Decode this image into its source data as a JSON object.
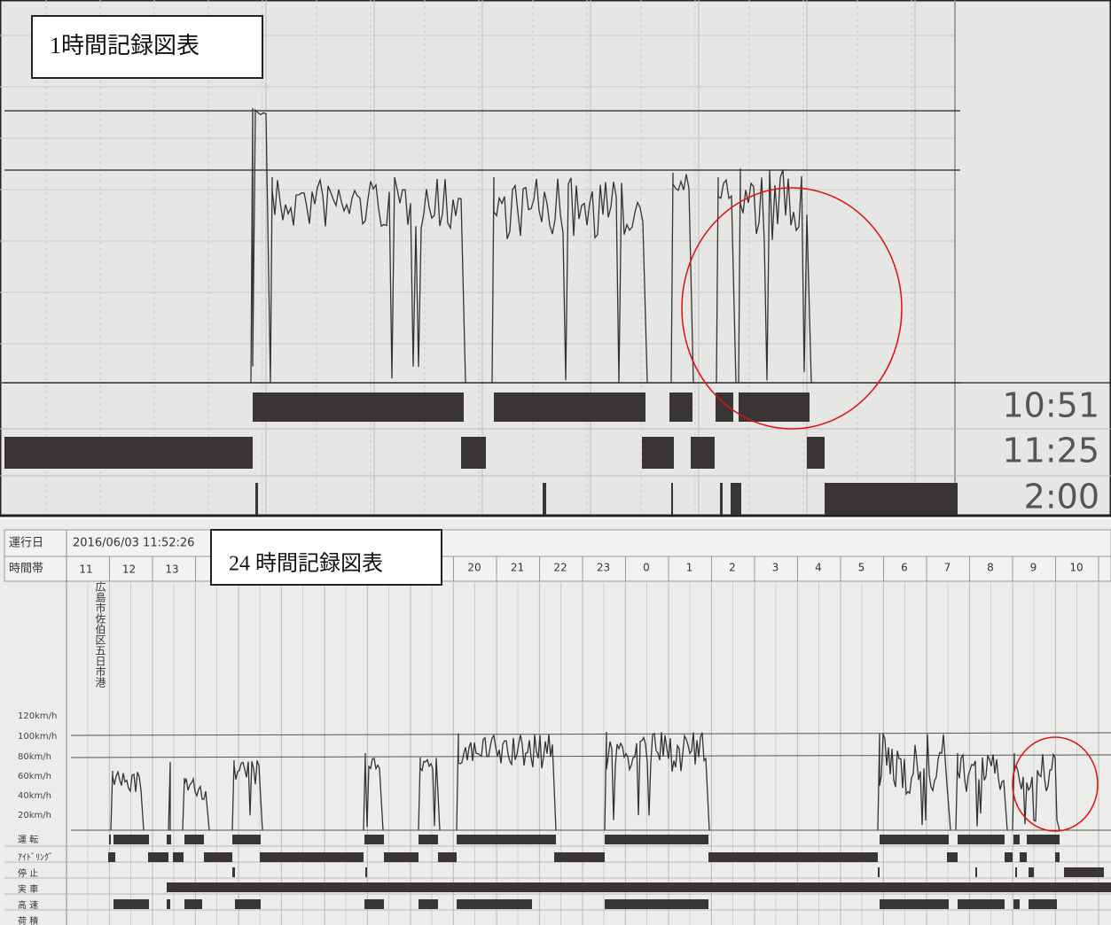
{
  "top_panel": {
    "title": "1時間記録図表",
    "times": [
      "10:51",
      "11:25",
      "2:00"
    ]
  },
  "bottom_panel": {
    "title": "24 時間記録図表",
    "date_label": "運行日",
    "date": "2016/06/03 11:52:26",
    "hour_label": "時間帯",
    "hours_left": [
      "11",
      "12",
      "13"
    ],
    "hours_right": [
      "20",
      "21",
      "22",
      "23",
      "0",
      "1",
      "2",
      "3",
      "4",
      "5",
      "6",
      "7",
      "8",
      "9",
      "10"
    ],
    "location": "広島市佐伯区五日市港",
    "speed_labels": [
      "120km/h",
      "100km/h",
      "80km/h",
      "60km/h",
      "40km/h",
      "20km/h"
    ],
    "row_labels": [
      "運 転",
      "ｱｲﾄﾞﾘﾝｸﾞ",
      "停 止",
      "実 車",
      "高 速",
      "荷 積"
    ]
  }
}
